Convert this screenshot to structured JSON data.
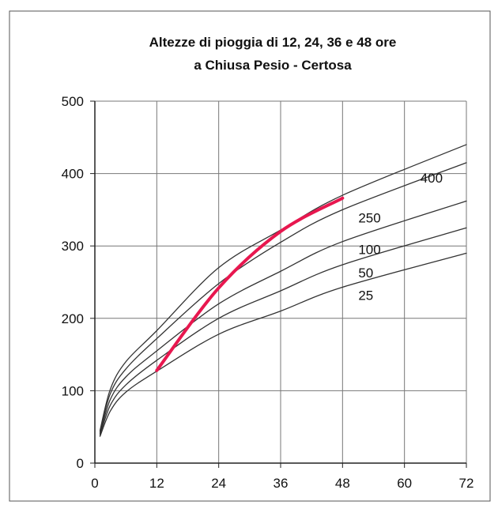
{
  "chart_data": {
    "type": "line",
    "title": "Altezze di pioggia di 12, 24, 36 e 48 ore",
    "subtitle": "a Chiusa Pesio - Certosa",
    "xlabel": "",
    "ylabel": "",
    "xlim": [
      0,
      72
    ],
    "ylim": [
      0,
      500
    ],
    "x_ticks": [
      "0",
      "12",
      "24",
      "36",
      "48",
      "60",
      "72"
    ],
    "y_ticks": [
      "0",
      "100",
      "200",
      "300",
      "400",
      "500"
    ],
    "grid": true,
    "legend": "none",
    "series": [
      {
        "name": "25",
        "label": "25",
        "color": "#333333",
        "x": [
          1,
          3,
          6,
          12,
          24,
          36,
          48,
          72
        ],
        "y": [
          37,
          72,
          98,
          127,
          178,
          210,
          243,
          290
        ],
        "label_at": [
          48,
          243
        ]
      },
      {
        "name": "50",
        "label": "50",
        "color": "#333333",
        "x": [
          1,
          3,
          6,
          12,
          24,
          36,
          48,
          72
        ],
        "y": [
          39,
          80,
          108,
          142,
          200,
          238,
          274,
          325
        ],
        "label_at": [
          48,
          274
        ]
      },
      {
        "name": "100",
        "label": "100",
        "color": "#333333",
        "x": [
          1,
          3,
          6,
          12,
          24,
          36,
          48,
          72
        ],
        "y": [
          41,
          88,
          119,
          155,
          220,
          265,
          306,
          362
        ],
        "label_at": [
          48,
          306
        ]
      },
      {
        "name": "250",
        "label": "250",
        "color": "#333333",
        "x": [
          1,
          3,
          6,
          12,
          24,
          36,
          48,
          72
        ],
        "y": [
          43,
          96,
          130,
          172,
          248,
          305,
          350,
          415
        ],
        "label_at": [
          48,
          350
        ]
      },
      {
        "name": "400",
        "label": "400",
        "color": "#333333",
        "x": [
          1,
          3,
          6,
          12,
          24,
          36,
          48,
          72
        ],
        "y": [
          45,
          102,
          140,
          183,
          270,
          322,
          370,
          440
        ],
        "label_at": [
          60,
          405
        ]
      },
      {
        "name": "",
        "label": "",
        "color": "#e8174f",
        "x": [
          12,
          24,
          36,
          48
        ],
        "y": [
          128,
          242,
          320,
          366
        ]
      }
    ]
  }
}
